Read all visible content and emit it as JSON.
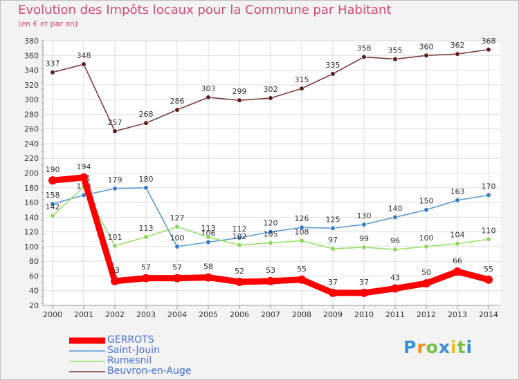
{
  "title": "Evolution des Impôts locaux pour la Commune par Habitant",
  "subtitle": "(en € et par an)",
  "brand": "Proxiti",
  "chart_data": {
    "type": "line",
    "title": "Evolution des Impôts locaux pour la Commune par Habitant",
    "subtitle": "(en € et par an)",
    "xlabel": "",
    "ylabel": "",
    "ylim": [
      20,
      380
    ],
    "yticks": [
      20,
      40,
      60,
      80,
      100,
      120,
      140,
      160,
      180,
      200,
      220,
      240,
      260,
      280,
      300,
      320,
      340,
      360,
      380
    ],
    "grid": true,
    "categories": [
      "2000",
      "2001",
      "2002",
      "2003",
      "2004",
      "2005",
      "2006",
      "2007",
      "2008",
      "2009",
      "2010",
      "2011",
      "2012",
      "2013",
      "2014"
    ],
    "series": [
      {
        "name": "Beuvron-en-Auge",
        "color": "#7a3b3b",
        "marker": "#5a1f1f",
        "thick": false,
        "values": [
          337,
          348,
          257,
          268,
          286,
          303,
          299,
          302,
          315,
          335,
          358,
          355,
          360,
          362,
          368
        ]
      },
      {
        "name": "Saint-Jouin",
        "color": "#5a9ad0",
        "marker": "#3a7cc0",
        "thick": false,
        "values": [
          158,
          170,
          179,
          180,
          100,
          106,
          112,
          120,
          126,
          125,
          130,
          140,
          150,
          163,
          170
        ]
      },
      {
        "name": "Rumesnil",
        "color": "#98e06a",
        "marker": "#8ed45e",
        "thick": false,
        "values": [
          142,
          181,
          101,
          113,
          127,
          113,
          102,
          105,
          108,
          97,
          99,
          96,
          100,
          104,
          110
        ]
      },
      {
        "name": "GERROTS",
        "color": "#ff0000",
        "marker": "#ff0000",
        "thick": true,
        "values": [
          190,
          194,
          53,
          57,
          57,
          58,
          52,
          53,
          55,
          37,
          37,
          43,
          50,
          66,
          55
        ]
      }
    ],
    "legend": {
      "position": "bottom-left",
      "items": [
        "GERROTS",
        "Saint-Jouin",
        "Rumesnil",
        "Beuvron-en-Auge"
      ]
    }
  },
  "legend_items": [
    {
      "label": "GERROTS",
      "color": "#ff0000",
      "thick": true
    },
    {
      "label": "Saint-Jouin",
      "color": "#5a9ad0",
      "thick": false
    },
    {
      "label": "Rumesnil",
      "color": "#98e06a",
      "thick": false
    },
    {
      "label": "Beuvron-en-Auge",
      "color": "#7a3b3b",
      "thick": false
    }
  ]
}
